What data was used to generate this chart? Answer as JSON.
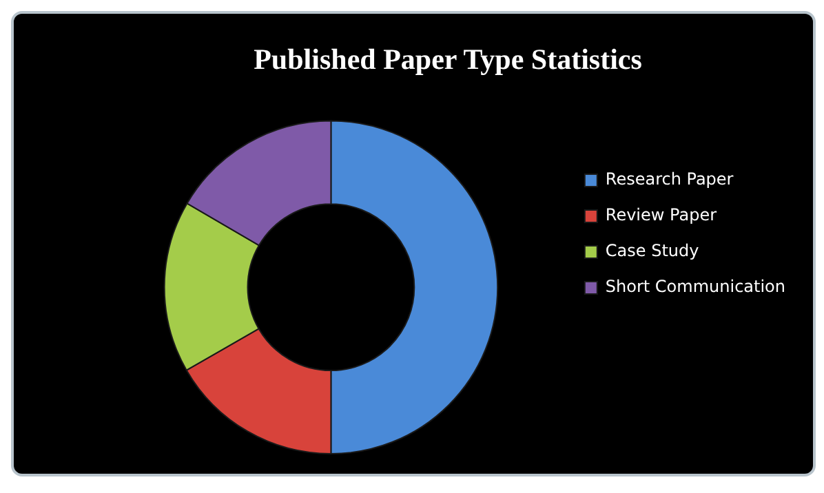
{
  "chart_data": {
    "type": "donut",
    "title": "Published Paper Type Statistics",
    "categories": [
      "Research Paper",
      "Review Paper",
      "Case Study",
      "Short Communication"
    ],
    "values": [
      50,
      16.7,
      16.7,
      16.6
    ],
    "colors": [
      "#4a8ad8",
      "#d8433b",
      "#a4cc4a",
      "#7f5aa8"
    ],
    "legend": "right"
  }
}
